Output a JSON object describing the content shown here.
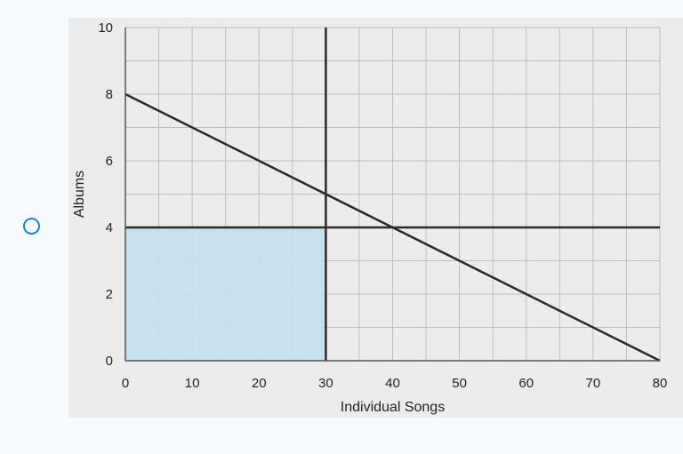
{
  "chart_data": {
    "type": "line",
    "xlabel": "Individual Songs",
    "ylabel": "Albums",
    "xlim": [
      0,
      80
    ],
    "ylim": [
      0,
      10
    ],
    "x_ticks": [
      "0",
      "10",
      "20",
      "30",
      "40",
      "50",
      "60",
      "70",
      "80"
    ],
    "y_ticks": [
      "0",
      "2",
      "4",
      "6",
      "8",
      "10"
    ],
    "grid": true,
    "lines": [
      {
        "points": [
          [
            0,
            8
          ],
          [
            80,
            0
          ]
        ]
      },
      {
        "points": [
          [
            0,
            4
          ],
          [
            80,
            4
          ]
        ]
      },
      {
        "points": [
          [
            30,
            0
          ],
          [
            30,
            10
          ]
        ]
      }
    ],
    "shaded_region": {
      "x": [
        0,
        30
      ],
      "y": [
        0,
        4
      ]
    },
    "colors": {
      "shade": "#c3e0ee",
      "line": "#2a2a2a",
      "grid": "#bdbdbd",
      "background": "#ececec",
      "radio": "#1a86c7"
    }
  }
}
